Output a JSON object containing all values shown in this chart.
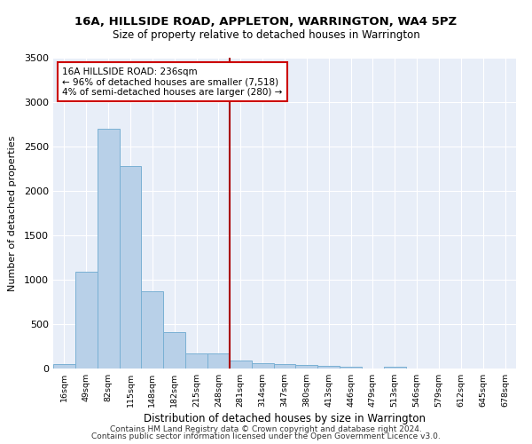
{
  "title": "16A, HILLSIDE ROAD, APPLETON, WARRINGTON, WA4 5PZ",
  "subtitle": "Size of property relative to detached houses in Warrington",
  "xlabel": "Distribution of detached houses by size in Warrington",
  "ylabel": "Number of detached properties",
  "bar_labels": [
    "16sqm",
    "49sqm",
    "82sqm",
    "115sqm",
    "148sqm",
    "182sqm",
    "215sqm",
    "248sqm",
    "281sqm",
    "314sqm",
    "347sqm",
    "380sqm",
    "413sqm",
    "446sqm",
    "479sqm",
    "513sqm",
    "546sqm",
    "579sqm",
    "612sqm",
    "645sqm",
    "678sqm"
  ],
  "bar_values": [
    50,
    1090,
    2700,
    2280,
    875,
    415,
    170,
    170,
    95,
    65,
    55,
    45,
    35,
    25,
    0,
    20,
    0,
    0,
    0,
    0,
    0
  ],
  "bar_color": "#b8d0e8",
  "bar_edgecolor": "#7ab0d4",
  "vline_x": 7.5,
  "annotation_text": "16A HILLSIDE ROAD: 236sqm\n← 96% of detached houses are smaller (7,518)\n4% of semi-detached houses are larger (280) →",
  "annotation_box_facecolor": "#ffffff",
  "annotation_box_edgecolor": "#cc0000",
  "vline_color": "#aa0000",
  "ylim": [
    0,
    3500
  ],
  "yticks": [
    0,
    500,
    1000,
    1500,
    2000,
    2500,
    3000,
    3500
  ],
  "background_color": "#e8eef8",
  "grid_color": "#ffffff",
  "footer1": "Contains HM Land Registry data © Crown copyright and database right 2024.",
  "footer2": "Contains public sector information licensed under the Open Government Licence v3.0."
}
